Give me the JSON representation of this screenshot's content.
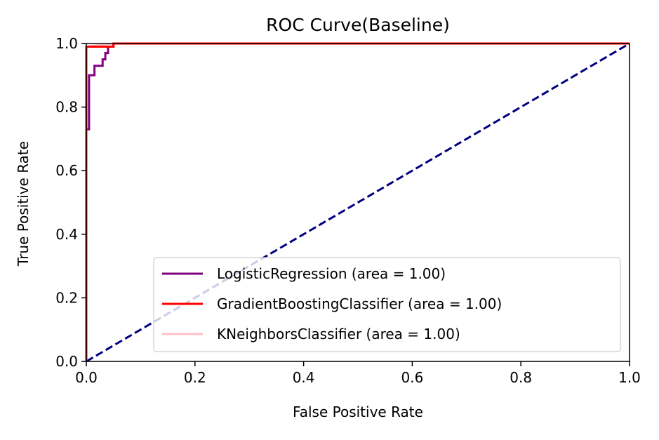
{
  "chart_data": {
    "type": "line",
    "title": "ROC Curve(Baseline)",
    "xlabel": "False Positive Rate",
    "ylabel": "True Positive Rate",
    "xlim": [
      0.0,
      1.0
    ],
    "ylim": [
      0.0,
      1.0
    ],
    "x_ticks": [
      "0.0",
      "0.2",
      "0.4",
      "0.6",
      "0.8",
      "1.0"
    ],
    "y_ticks": [
      "0.0",
      "0.2",
      "0.4",
      "0.6",
      "0.8",
      "1.0"
    ],
    "grid": false,
    "legend_position": "lower-right",
    "series": [
      {
        "name": "LogisticRegression (area = 1.00)",
        "color": "#800080",
        "style": "solid",
        "x": [
          0.0,
          0.0,
          0.005,
          0.005,
          0.01,
          0.01,
          0.015,
          0.015,
          0.03,
          0.03,
          0.035,
          0.035,
          0.04,
          0.04,
          0.05,
          0.05,
          1.0
        ],
        "y": [
          0.0,
          0.73,
          0.73,
          0.9,
          0.9,
          0.9,
          0.9,
          0.93,
          0.93,
          0.95,
          0.95,
          0.97,
          0.97,
          0.99,
          0.99,
          1.0,
          1.0
        ]
      },
      {
        "name": "GradientBoostingClassifier (area = 1.00)",
        "color": "#ff0000",
        "style": "solid",
        "x": [
          0.0,
          0.0,
          0.04,
          0.04,
          0.05,
          0.05,
          1.0
        ],
        "y": [
          0.0,
          0.99,
          0.99,
          0.99,
          0.99,
          1.0,
          1.0
        ]
      },
      {
        "name": "KNeighborsClassifier (area = 1.00)",
        "color": "#ffc0cb",
        "style": "solid",
        "x": [
          0.0,
          0.0,
          0.05,
          1.0
        ],
        "y": [
          0.0,
          0.99,
          1.0,
          1.0
        ]
      },
      {
        "name": "",
        "color": "#000080",
        "style": "dashed",
        "x": [
          0.0,
          1.0
        ],
        "y": [
          0.0,
          1.0
        ]
      }
    ]
  }
}
